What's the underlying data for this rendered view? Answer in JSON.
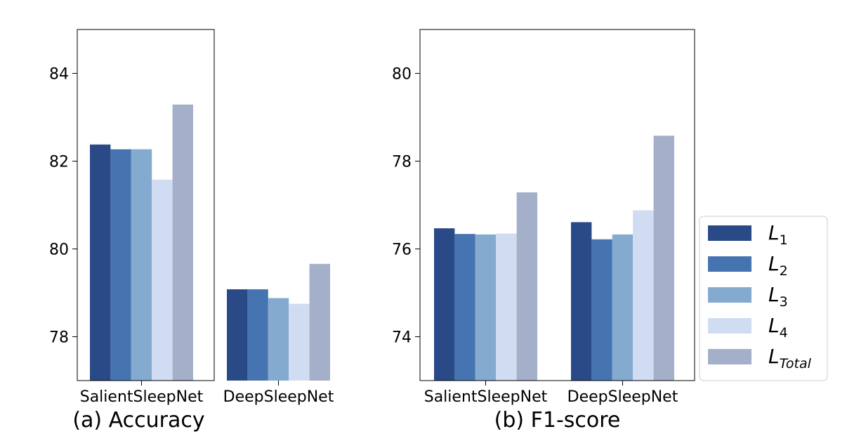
{
  "chart_data": [
    {
      "type": "bar",
      "title": "(a) Accuracy",
      "xlabel": "",
      "ylabel": "",
      "categories": [
        "SalientSleepNet",
        "DeepSleepNet"
      ],
      "ylim": [
        77,
        85
      ],
      "yticks": [
        78,
        80,
        82,
        84
      ],
      "grid": false,
      "series": [
        {
          "name": "L1",
          "values": [
            82.38,
            79.08
          ]
        },
        {
          "name": "L2",
          "values": [
            82.27,
            79.08
          ]
        },
        {
          "name": "L3",
          "values": [
            82.27,
            78.88
          ]
        },
        {
          "name": "L4",
          "values": [
            81.58,
            78.75
          ]
        },
        {
          "name": "LTotal",
          "values": [
            83.29,
            79.66
          ]
        }
      ]
    },
    {
      "type": "bar",
      "title": "(b) F1-score",
      "xlabel": "",
      "ylabel": "",
      "categories": [
        "SalientSleepNet",
        "DeepSleepNet"
      ],
      "ylim": [
        73,
        81
      ],
      "yticks": [
        74,
        76,
        78,
        80
      ],
      "grid": false,
      "series": [
        {
          "name": "L1",
          "values": [
            76.47,
            76.61
          ]
        },
        {
          "name": "L2",
          "values": [
            76.34,
            76.22
          ]
        },
        {
          "name": "L3",
          "values": [
            76.33,
            76.33
          ]
        },
        {
          "name": "L4",
          "values": [
            76.35,
            76.88
          ]
        },
        {
          "name": "LTotal",
          "values": [
            77.29,
            78.58
          ]
        }
      ]
    }
  ],
  "legend": {
    "placement": "right",
    "items": [
      {
        "base": "L",
        "sub": "1",
        "color": "#2a4a87"
      },
      {
        "base": "L",
        "sub": "2",
        "color": "#4674b0"
      },
      {
        "base": "L",
        "sub": "3",
        "color": "#84aacf"
      },
      {
        "base": "L",
        "sub": "4",
        "color": "#d0dcf2"
      },
      {
        "base": "L",
        "sub": "Total",
        "color": "#a4b0c9"
      }
    ]
  },
  "colors": [
    "#2a4a87",
    "#4674b0",
    "#84aacf",
    "#d0dcf2",
    "#a4b0c9"
  ]
}
